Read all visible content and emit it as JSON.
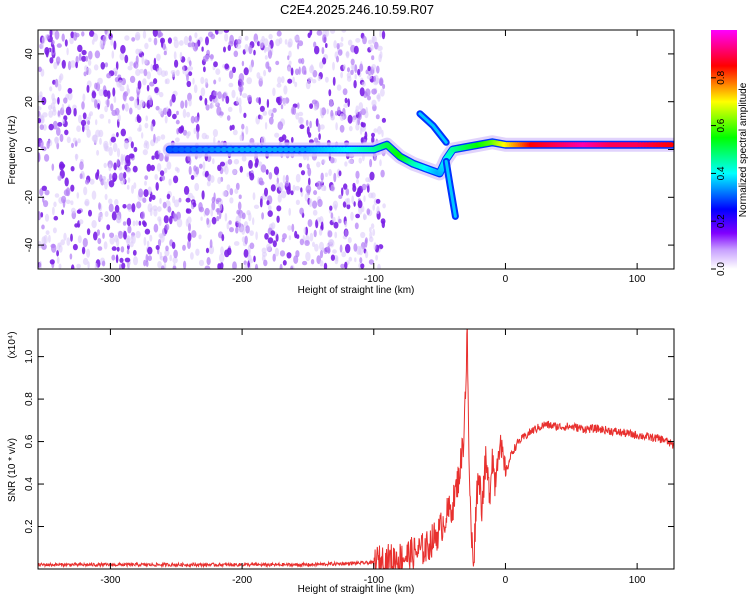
{
  "title": "C2E4.2025.246.10.59.R07",
  "chart_data": [
    {
      "type": "heatmap",
      "xlabel": "Height of straight line (km)",
      "ylabel": "Frequency (Hz)",
      "xlim": [
        -355,
        128
      ],
      "ylim": [
        -50,
        50
      ],
      "xticks": [
        -300,
        -200,
        -100,
        0,
        100
      ],
      "yticks": [
        -40,
        -20,
        0,
        20,
        40
      ],
      "colorbar": {
        "label": "Normalized spectral amplitude",
        "range": [
          0,
          1
        ],
        "ticks": [
          "0.0",
          "0.2",
          "0.4",
          "0.6",
          "0.8"
        ],
        "colors": [
          "#ffffff",
          "#8000ff",
          "#0000ff",
          "#00ffff",
          "#00ff00",
          "#ffff00",
          "#ff0000",
          "#ff00ff"
        ]
      },
      "noise_region_x": [
        -355,
        -92
      ],
      "ridge": {
        "x": [
          -255,
          -200,
          -150,
          -120,
          -100,
          -90,
          -80,
          -70,
          -60,
          -50,
          -45,
          -40,
          -30,
          -20,
          -10,
          0,
          20,
          40,
          60,
          80,
          100,
          128
        ],
        "y": [
          0,
          0,
          0,
          0,
          0,
          2,
          -3,
          -6,
          -8,
          -10,
          -4,
          0,
          1,
          2,
          3,
          2,
          2,
          2,
          2,
          2,
          2,
          2
        ],
        "amplitude": [
          0.3,
          0.35,
          0.35,
          0.4,
          0.45,
          0.5,
          0.55,
          0.45,
          0.4,
          0.35,
          0.4,
          0.45,
          0.5,
          0.55,
          0.6,
          0.7,
          0.85,
          0.9,
          0.95,
          0.9,
          0.9,
          0.85
        ]
      },
      "branch_up": {
        "x": [
          -65,
          -55,
          -45
        ],
        "y": [
          15,
          10,
          3
        ]
      },
      "branch_down": {
        "x": [
          -45,
          -42,
          -38
        ],
        "y": [
          -5,
          -15,
          -28
        ]
      }
    },
    {
      "type": "line",
      "xlabel": "Height of straight line (km)",
      "ylabel": "SNR (10 * v/v)",
      "yscale_label": "(x10⁴)",
      "xlim": [
        -355,
        128
      ],
      "ylim": [
        0,
        1.13
      ],
      "xticks": [
        -300,
        -200,
        -100,
        0,
        100
      ],
      "yticks": [
        "0.2",
        "0.4",
        "0.6",
        "0.8",
        "1.0"
      ],
      "line_color": "#e8302e",
      "series": [
        {
          "x": [
            -355,
            -300,
            -250,
            -200,
            -150,
            -100,
            -80,
            -60,
            -50,
            -45,
            -40,
            -35,
            -32,
            -30,
            -29,
            -28,
            -26,
            -24,
            -22,
            -20,
            -18,
            -15,
            -12,
            -10,
            -8,
            -5,
            0,
            5,
            10,
            20,
            30,
            40,
            50,
            60,
            70,
            80,
            90,
            100,
            110,
            120,
            128
          ],
          "y": [
            0.02,
            0.02,
            0.02,
            0.02,
            0.02,
            0.03,
            0.05,
            0.1,
            0.18,
            0.25,
            0.3,
            0.45,
            0.6,
            0.9,
            1.13,
            0.6,
            0.15,
            0.05,
            0.35,
            0.45,
            0.3,
            0.5,
            0.35,
            0.55,
            0.4,
            0.6,
            0.45,
            0.55,
            0.6,
            0.65,
            0.68,
            0.67,
            0.67,
            0.66,
            0.66,
            0.65,
            0.64,
            0.63,
            0.62,
            0.61,
            0.58
          ]
        }
      ]
    }
  ]
}
